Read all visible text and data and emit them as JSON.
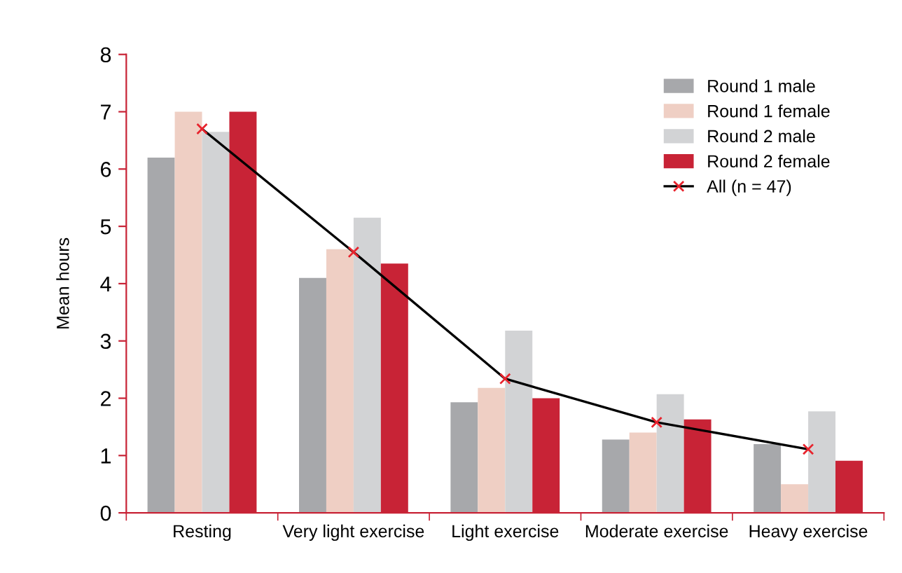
{
  "chart_data": {
    "type": "bar",
    "ylabel": "Mean hours",
    "categories": [
      "Resting",
      "Very light exercise",
      "Light exercise",
      "Moderate exercise",
      "Heavy exercise"
    ],
    "series": [
      {
        "name": "Round 1 male",
        "color": "#a7a8ab",
        "values": [
          6.2,
          4.1,
          1.93,
          1.28,
          1.2
        ]
      },
      {
        "name": "Round 1 female",
        "color": "#efcfc4",
        "values": [
          7.0,
          4.6,
          2.18,
          1.4,
          0.5
        ]
      },
      {
        "name": "Round 2 male",
        "color": "#d2d3d5",
        "values": [
          6.65,
          5.15,
          3.18,
          2.07,
          1.77
        ]
      },
      {
        "name": "Round 2 female",
        "color": "#c82336",
        "values": [
          7.0,
          4.35,
          2.0,
          1.63,
          0.91
        ]
      },
      {
        "name": "All (n = 47)",
        "type": "line",
        "color": "#000000",
        "marker": "cross",
        "values": [
          6.7,
          4.55,
          2.34,
          1.58,
          1.11
        ]
      }
    ],
    "ylim": [
      0,
      8
    ],
    "yticks": [
      0,
      1,
      2,
      3,
      4,
      5,
      6,
      7,
      8
    ],
    "grid": false,
    "legend": "top right"
  }
}
